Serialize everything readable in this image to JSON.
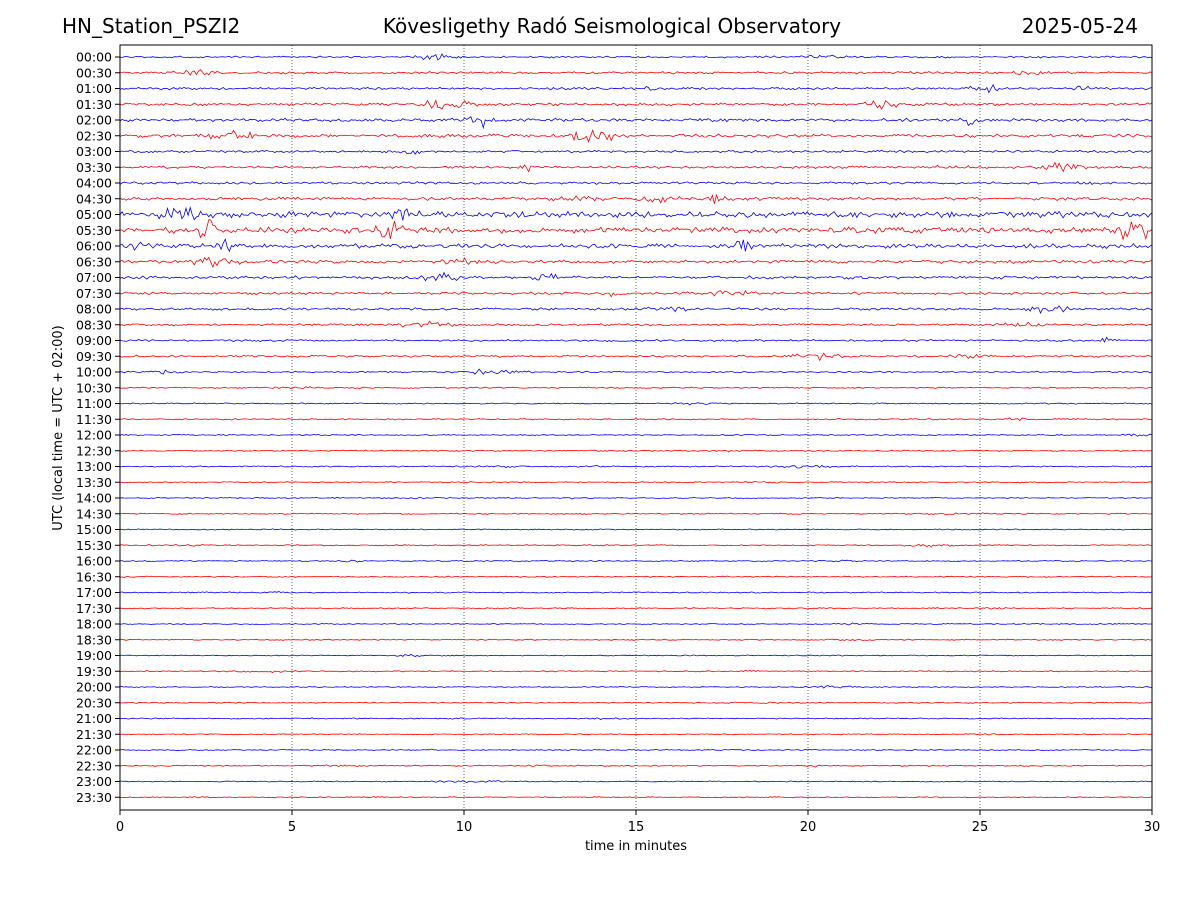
{
  "header": {
    "station": "HN_Station_PSZI2",
    "observatory": "Kövesligethy Radó Seismological Observatory",
    "date": "2025-05-24"
  },
  "chart_data": {
    "type": "line",
    "title": "Kövesligethy Radó Seismological Observatory",
    "xlabel": "time in minutes",
    "ylabel": "UTC (local time = UTC + 02:00)",
    "xlim": [
      0,
      30
    ],
    "x_ticks": [
      "0",
      "5",
      "10",
      "15",
      "20",
      "25",
      "30"
    ],
    "x_tick_values": [
      0,
      5,
      10,
      15,
      20,
      25,
      30
    ],
    "grid": "vertical dotted at 5-minute ticks",
    "colors": {
      "even_rows": "#0000ff",
      "odd_rows": "#ff0000",
      "grid": "#000000"
    },
    "rows": [
      {
        "label": "00:00",
        "activity": 0.22
      },
      {
        "label": "00:30",
        "activity": 0.28
      },
      {
        "label": "01:00",
        "activity": 0.3
      },
      {
        "label": "01:30",
        "activity": 0.38
      },
      {
        "label": "02:00",
        "activity": 0.42
      },
      {
        "label": "02:30",
        "activity": 0.45
      },
      {
        "label": "03:00",
        "activity": 0.3
      },
      {
        "label": "03:30",
        "activity": 0.3
      },
      {
        "label": "04:00",
        "activity": 0.32
      },
      {
        "label": "04:30",
        "activity": 0.45
      },
      {
        "label": "05:00",
        "activity": 0.95
      },
      {
        "label": "05:30",
        "activity": 0.9
      },
      {
        "label": "06:00",
        "activity": 0.65
      },
      {
        "label": "06:30",
        "activity": 0.45
      },
      {
        "label": "07:00",
        "activity": 0.4
      },
      {
        "label": "07:30",
        "activity": 0.32
      },
      {
        "label": "08:00",
        "activity": 0.3
      },
      {
        "label": "08:30",
        "activity": 0.25
      },
      {
        "label": "09:00",
        "activity": 0.22
      },
      {
        "label": "09:30",
        "activity": 0.25
      },
      {
        "label": "10:00",
        "activity": 0.15
      },
      {
        "label": "10:30",
        "activity": 0.1
      },
      {
        "label": "11:00",
        "activity": 0.1
      },
      {
        "label": "11:30",
        "activity": 0.12
      },
      {
        "label": "12:00",
        "activity": 0.08
      },
      {
        "label": "12:30",
        "activity": 0.1
      },
      {
        "label": "13:00",
        "activity": 0.1
      },
      {
        "label": "13:30",
        "activity": 0.08
      },
      {
        "label": "14:00",
        "activity": 0.08
      },
      {
        "label": "14:30",
        "activity": 0.1
      },
      {
        "label": "15:00",
        "activity": 0.08
      },
      {
        "label": "15:30",
        "activity": 0.08
      },
      {
        "label": "16:00",
        "activity": 0.08
      },
      {
        "label": "16:30",
        "activity": 0.08
      },
      {
        "label": "17:00",
        "activity": 0.1
      },
      {
        "label": "17:30",
        "activity": 0.1
      },
      {
        "label": "18:00",
        "activity": 0.08
      },
      {
        "label": "18:30",
        "activity": 0.08
      },
      {
        "label": "19:00",
        "activity": 0.06
      },
      {
        "label": "19:30",
        "activity": 0.08
      },
      {
        "label": "20:00",
        "activity": 0.08
      },
      {
        "label": "20:30",
        "activity": 0.06
      },
      {
        "label": "21:00",
        "activity": 0.08
      },
      {
        "label": "21:30",
        "activity": 0.06
      },
      {
        "label": "22:00",
        "activity": 0.08
      },
      {
        "label": "22:30",
        "activity": 0.08
      },
      {
        "label": "23:00",
        "activity": 0.06
      },
      {
        "label": "23:30",
        "activity": 0.06
      }
    ]
  }
}
